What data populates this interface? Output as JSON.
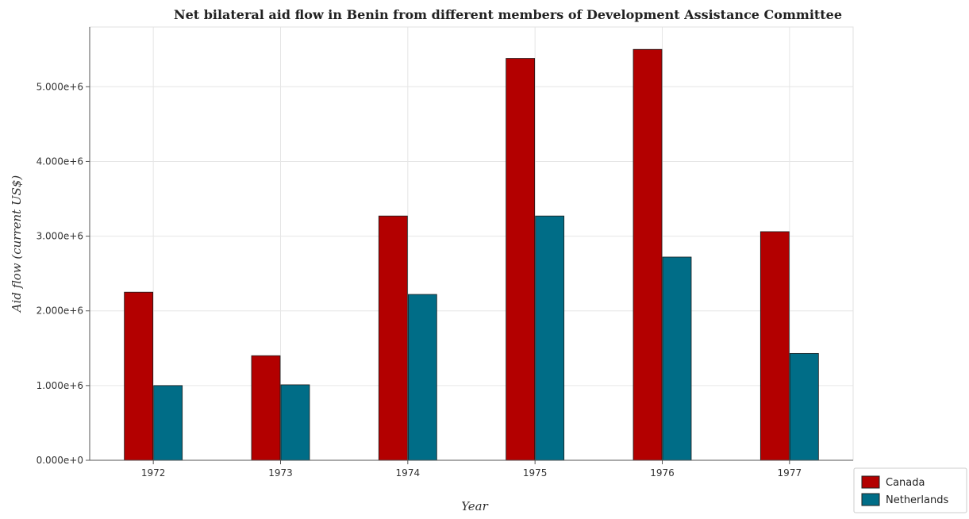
{
  "chart_data": {
    "type": "bar",
    "title": "Net bilateral aid flow in Benin from different members of Development Assistance Committee",
    "xlabel": "Year",
    "ylabel": "Aid flow (current US$)",
    "categories": [
      "1972",
      "1973",
      "1974",
      "1975",
      "1976",
      "1977"
    ],
    "series": [
      {
        "name": "Canada",
        "color": "#b30000",
        "values": [
          2250000,
          1400000,
          3270000,
          5380000,
          5500000,
          3060000
        ]
      },
      {
        "name": "Netherlands",
        "color": "#006d87",
        "values": [
          1000000,
          1010000,
          2220000,
          3270000,
          2720000,
          1430000
        ]
      }
    ],
    "ylim": [
      0,
      5800000
    ],
    "yticks": [
      0,
      1000000,
      2000000,
      3000000,
      4000000,
      5000000
    ],
    "ytick_labels": [
      "0.000e+0",
      "1.000e+6",
      "2.000e+6",
      "3.000e+6",
      "4.000e+6",
      "5.000e+6"
    ],
    "grid": true,
    "legend_position": "bottom-right"
  }
}
